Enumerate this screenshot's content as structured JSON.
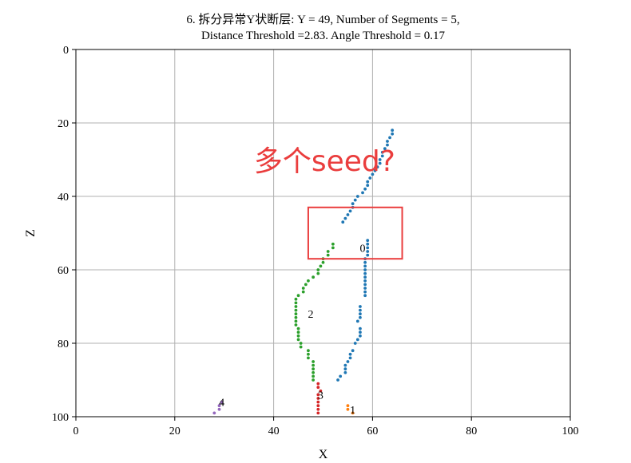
{
  "chart_data": {
    "type": "scatter",
    "title_lines": [
      "6. 拆分异常Y状断层: Y = 49, Number of Segments = 5,",
      "Distance Threshold =2.83. Angle Threshold = 0.17"
    ],
    "xlabel": "X",
    "ylabel": "Z",
    "xlim": [
      0,
      100
    ],
    "ylim": [
      0,
      100
    ],
    "y_inverted": true,
    "xticks": [
      0,
      20,
      40,
      60,
      80,
      100
    ],
    "yticks": [
      0,
      20,
      40,
      60,
      80,
      100
    ],
    "grid": true,
    "series": [
      {
        "label": "0",
        "label_pos": [
          58,
          54
        ],
        "color": "#1f77b4",
        "points": [
          [
            64,
            22
          ],
          [
            64,
            23
          ],
          [
            63.5,
            24
          ],
          [
            63,
            25
          ],
          [
            63,
            26
          ],
          [
            62.5,
            27
          ],
          [
            62,
            28
          ],
          [
            62,
            29
          ],
          [
            61.5,
            30
          ],
          [
            61.5,
            31
          ],
          [
            61,
            32
          ],
          [
            60.5,
            33
          ],
          [
            60,
            34
          ],
          [
            59.5,
            35
          ],
          [
            59,
            36
          ],
          [
            59,
            37
          ],
          [
            58.5,
            38
          ],
          [
            58,
            39
          ],
          [
            57,
            40
          ],
          [
            56.5,
            41
          ],
          [
            56,
            42
          ],
          [
            56,
            43
          ],
          [
            55.5,
            44
          ],
          [
            55,
            45
          ],
          [
            54.5,
            46
          ],
          [
            54,
            47
          ],
          [
            59,
            52
          ],
          [
            59,
            53
          ],
          [
            59,
            54
          ],
          [
            59,
            55
          ],
          [
            59,
            56
          ],
          [
            58.5,
            57
          ],
          [
            58.5,
            58
          ],
          [
            58.5,
            59
          ],
          [
            58.5,
            60
          ],
          [
            58.5,
            61
          ],
          [
            58.5,
            62
          ],
          [
            58.5,
            63
          ],
          [
            58.5,
            64
          ],
          [
            58.5,
            65
          ],
          [
            58.5,
            66
          ],
          [
            58.5,
            67
          ],
          [
            57.5,
            70
          ],
          [
            57.5,
            71
          ],
          [
            57.5,
            72
          ],
          [
            57.5,
            73
          ],
          [
            57,
            74
          ],
          [
            57.5,
            76
          ],
          [
            57.5,
            77
          ],
          [
            57.5,
            78
          ],
          [
            57,
            79
          ],
          [
            56.5,
            80
          ],
          [
            56,
            82
          ],
          [
            55.5,
            83
          ],
          [
            55.5,
            84
          ],
          [
            55,
            85
          ],
          [
            54.5,
            86
          ],
          [
            54.5,
            87
          ],
          [
            54.5,
            88
          ],
          [
            53.5,
            89
          ],
          [
            53,
            90
          ]
        ]
      },
      {
        "label": "1",
        "label_pos": [
          56,
          98
        ],
        "color": "#ff7f0e",
        "points": [
          [
            55,
            97
          ],
          [
            55,
            98
          ],
          [
            56,
            99
          ]
        ]
      },
      {
        "label": "2",
        "label_pos": [
          47.5,
          72
        ],
        "color": "#2ca02c",
        "points": [
          [
            52,
            53
          ],
          [
            52,
            54
          ],
          [
            51,
            55
          ],
          [
            51,
            56
          ],
          [
            50,
            57
          ],
          [
            50,
            58
          ],
          [
            49.5,
            59
          ],
          [
            49,
            60
          ],
          [
            49,
            61
          ],
          [
            48,
            62
          ],
          [
            47,
            63
          ],
          [
            46.5,
            64
          ],
          [
            46,
            65
          ],
          [
            46,
            66
          ],
          [
            45,
            67
          ],
          [
            44.5,
            68
          ],
          [
            44.5,
            69
          ],
          [
            44.5,
            70
          ],
          [
            44.5,
            71
          ],
          [
            44.5,
            72
          ],
          [
            44.5,
            73
          ],
          [
            44.5,
            74
          ],
          [
            44.5,
            75
          ],
          [
            45,
            76
          ],
          [
            45,
            77
          ],
          [
            45,
            78
          ],
          [
            45,
            79
          ],
          [
            45.5,
            80
          ],
          [
            45.5,
            81
          ],
          [
            47,
            82
          ],
          [
            47,
            83
          ],
          [
            47,
            84
          ],
          [
            48,
            85
          ],
          [
            48,
            86
          ],
          [
            48,
            87
          ],
          [
            48,
            88
          ],
          [
            48,
            89
          ],
          [
            48,
            90
          ]
        ]
      },
      {
        "label": "3",
        "label_pos": [
          49.5,
          94
        ],
        "color": "#d62728",
        "points": [
          [
            49,
            91
          ],
          [
            49,
            92
          ],
          [
            49.5,
            93
          ],
          [
            49,
            94
          ],
          [
            49,
            95
          ],
          [
            49,
            96
          ],
          [
            49,
            97
          ],
          [
            49,
            98
          ],
          [
            49,
            99
          ]
        ]
      },
      {
        "label": "4",
        "label_pos": [
          29.5,
          96
        ],
        "color": "#9467bd",
        "points": [
          [
            29.5,
            96
          ],
          [
            29,
            97
          ],
          [
            29,
            98
          ],
          [
            28,
            99
          ]
        ]
      }
    ],
    "annotations": [
      {
        "type": "text",
        "text": "多个seed?",
        "x": 36,
        "z": 33,
        "color": "#ea3d3d"
      },
      {
        "type": "rect",
        "x0": 47,
        "x1": 66,
        "z0": 43,
        "z1": 57,
        "color": "#ea3d3d"
      }
    ]
  }
}
